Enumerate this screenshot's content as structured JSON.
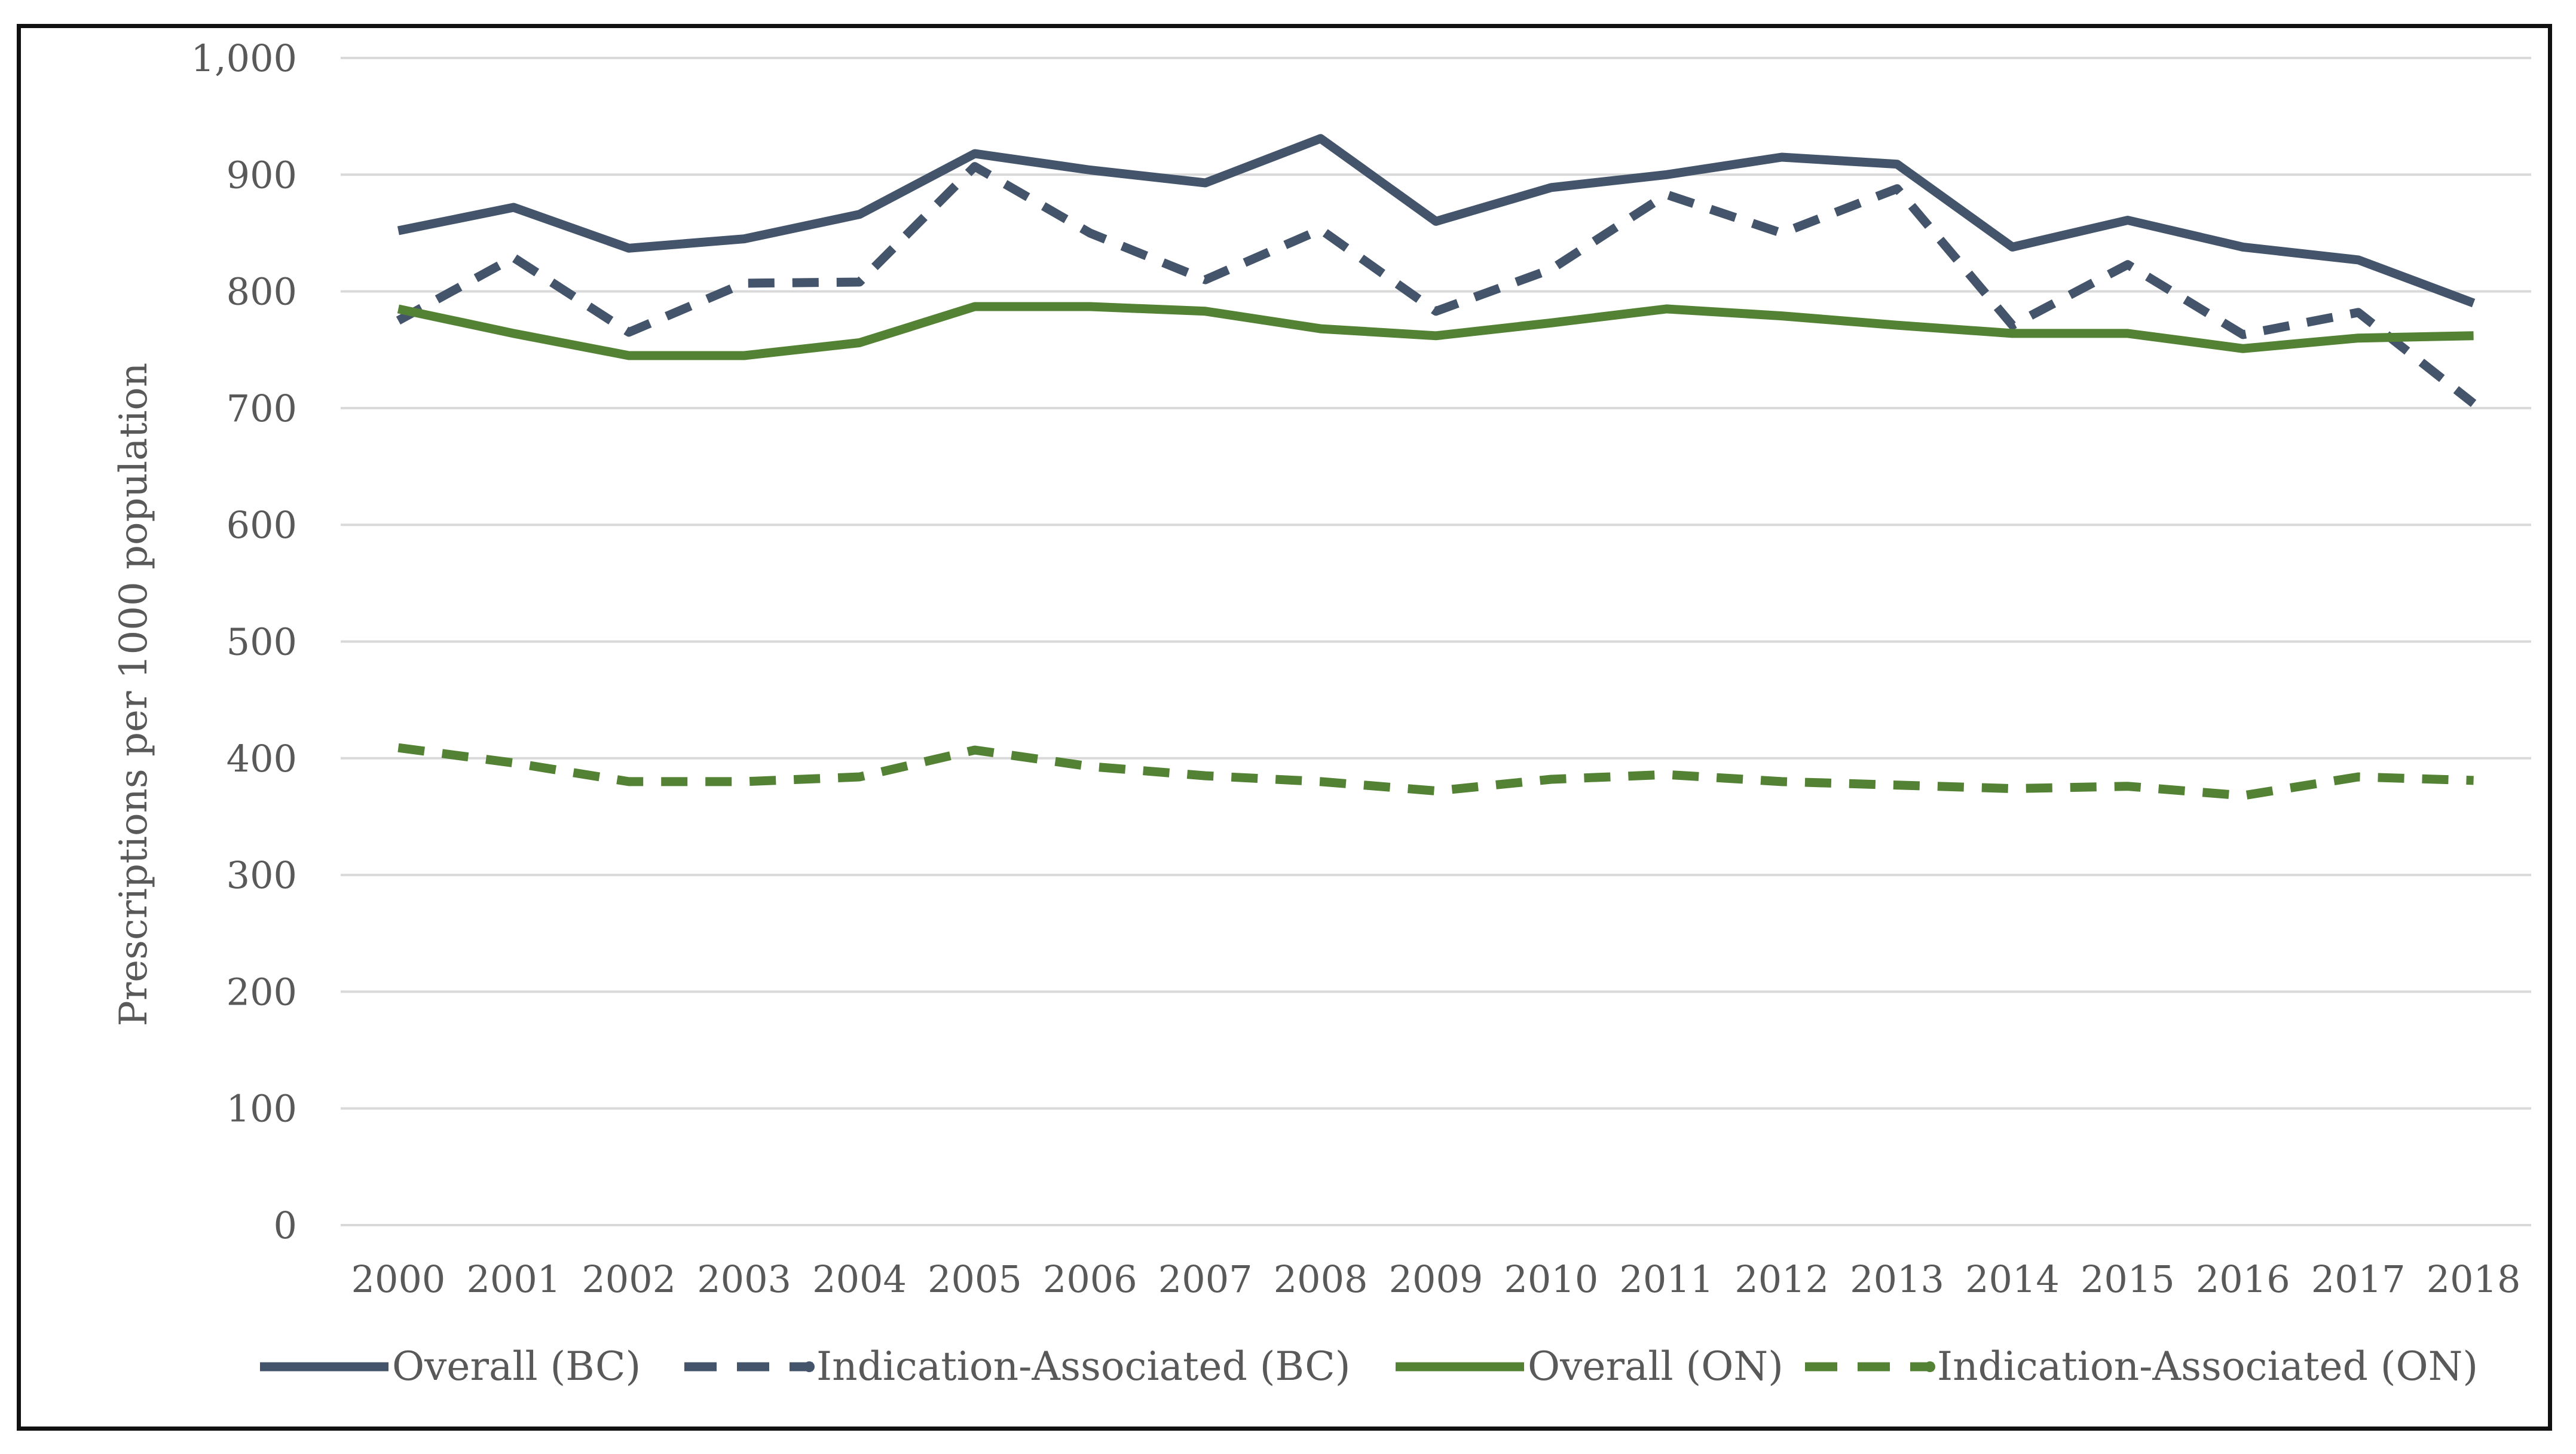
{
  "chart_data": {
    "type": "line",
    "title": "",
    "xlabel": "",
    "ylabel": "Prescriptions per 1000 population",
    "ylim": [
      0,
      1000
    ],
    "yticks": [
      "0",
      "100",
      "200",
      "300",
      "400",
      "500",
      "600",
      "700",
      "800",
      "900",
      "1,000"
    ],
    "ytick_values": [
      0,
      100,
      200,
      300,
      400,
      500,
      600,
      700,
      800,
      900,
      1000
    ],
    "categories": [
      "2000",
      "2001",
      "2002",
      "2003",
      "2004",
      "2005",
      "2006",
      "2007",
      "2008",
      "2009",
      "2010",
      "2011",
      "2012",
      "2013",
      "2014",
      "2015",
      "2016",
      "2017",
      "2018"
    ],
    "grid": true,
    "legend_position": "bottom",
    "series": [
      {
        "name": "Overall (BC)",
        "color": "#44546A",
        "style": "solid",
        "values": [
          852,
          872,
          837,
          845,
          866,
          918,
          904,
          893,
          931,
          860,
          889,
          900,
          915,
          909,
          838,
          861,
          838,
          827,
          790
        ]
      },
      {
        "name": "Indication-Associated (BC)",
        "color": "#44546A",
        "style": "dashed",
        "values": [
          775,
          829,
          765,
          807,
          808,
          907,
          850,
          810,
          853,
          783,
          819,
          883,
          850,
          888,
          771,
          823,
          763,
          782,
          704
        ]
      },
      {
        "name": "Overall (ON)",
        "color": "#548235",
        "style": "solid",
        "values": [
          785,
          764,
          745,
          745,
          756,
          787,
          787,
          783,
          768,
          762,
          773,
          785,
          779,
          771,
          764,
          764,
          751,
          760,
          762
        ]
      },
      {
        "name": "Indication-Associated (ON)",
        "color": "#548235",
        "style": "dashed",
        "values": [
          409,
          396,
          380,
          380,
          384,
          407,
          393,
          385,
          380,
          372,
          382,
          386,
          380,
          377,
          374,
          376,
          368,
          384,
          381
        ]
      }
    ]
  }
}
